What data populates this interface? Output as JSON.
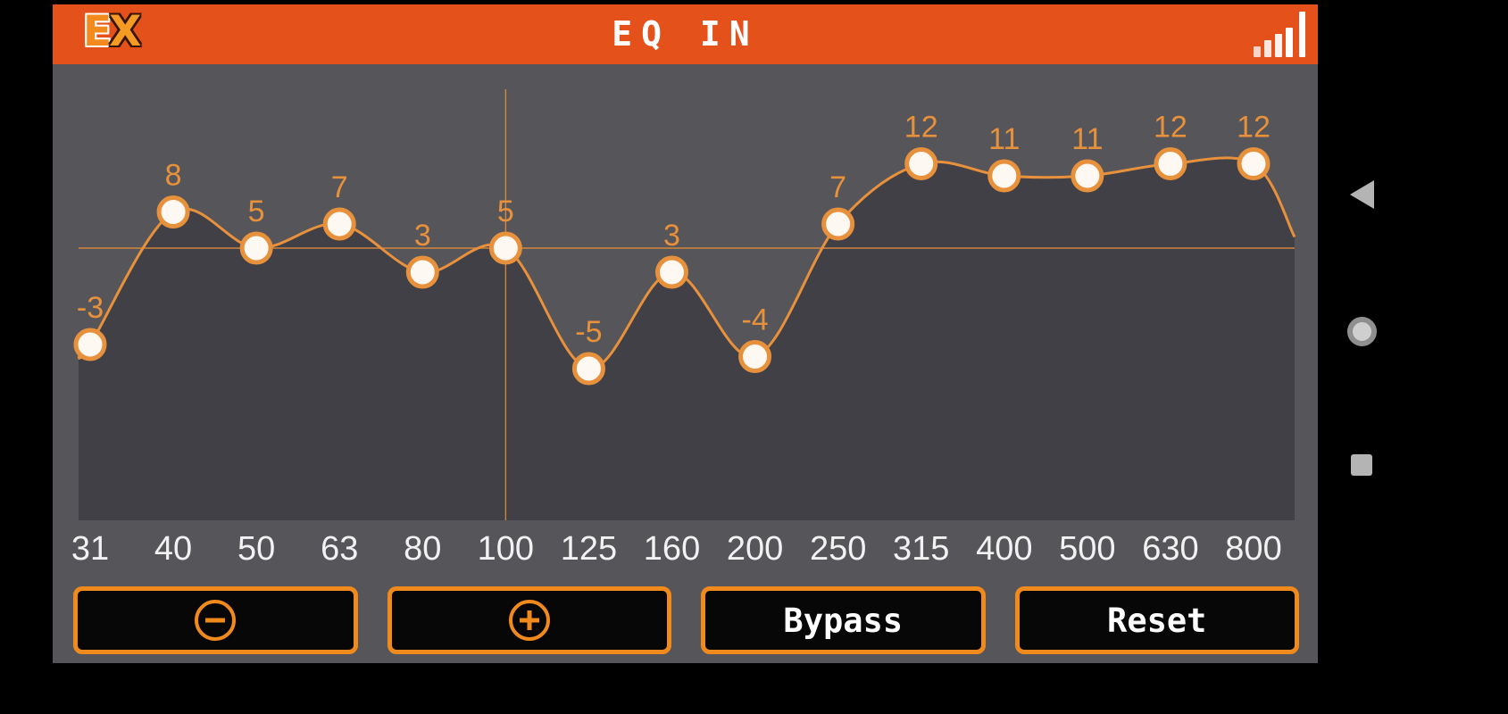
{
  "colors": {
    "header_bg": "#e5511a",
    "chart_bg": "#55555a",
    "chart_fill": "#404046",
    "accent": "#e8913c",
    "curve": "#e8913c",
    "point_fill": "#fdf8f1",
    "button_border": "#f08a1c",
    "button_bg": "#070707",
    "freq_label": "#f2f2f2",
    "nav_icon": "#b4b4b4",
    "title_color": "#ffffff"
  },
  "header": {
    "logo_e": "E",
    "logo_x": "X",
    "title": "EQ IN",
    "signal_icon": "signal-bars-icon"
  },
  "chart_data": {
    "type": "line",
    "title": "EQ IN",
    "categories": [
      "31",
      "40",
      "50",
      "63",
      "80",
      "100",
      "125",
      "160",
      "200",
      "250",
      "315",
      "400",
      "500",
      "630",
      "800"
    ],
    "values": [
      -3,
      8,
      5,
      7,
      3,
      5,
      -5,
      3,
      -4,
      7,
      12,
      11,
      11,
      12,
      12
    ],
    "selected_index": 5,
    "selected_category": "100",
    "ylim": [
      -18,
      18
    ],
    "grid": "crosshair-on-selected-point",
    "legend": "none"
  },
  "buttons": {
    "decrease_icon": "minus-circle-icon",
    "increase_icon": "plus-circle-icon",
    "bypass_label": "Bypass",
    "reset_label": "Reset"
  },
  "navbar": {
    "back": "back-icon",
    "home": "home-icon",
    "recents": "recents-icon"
  }
}
